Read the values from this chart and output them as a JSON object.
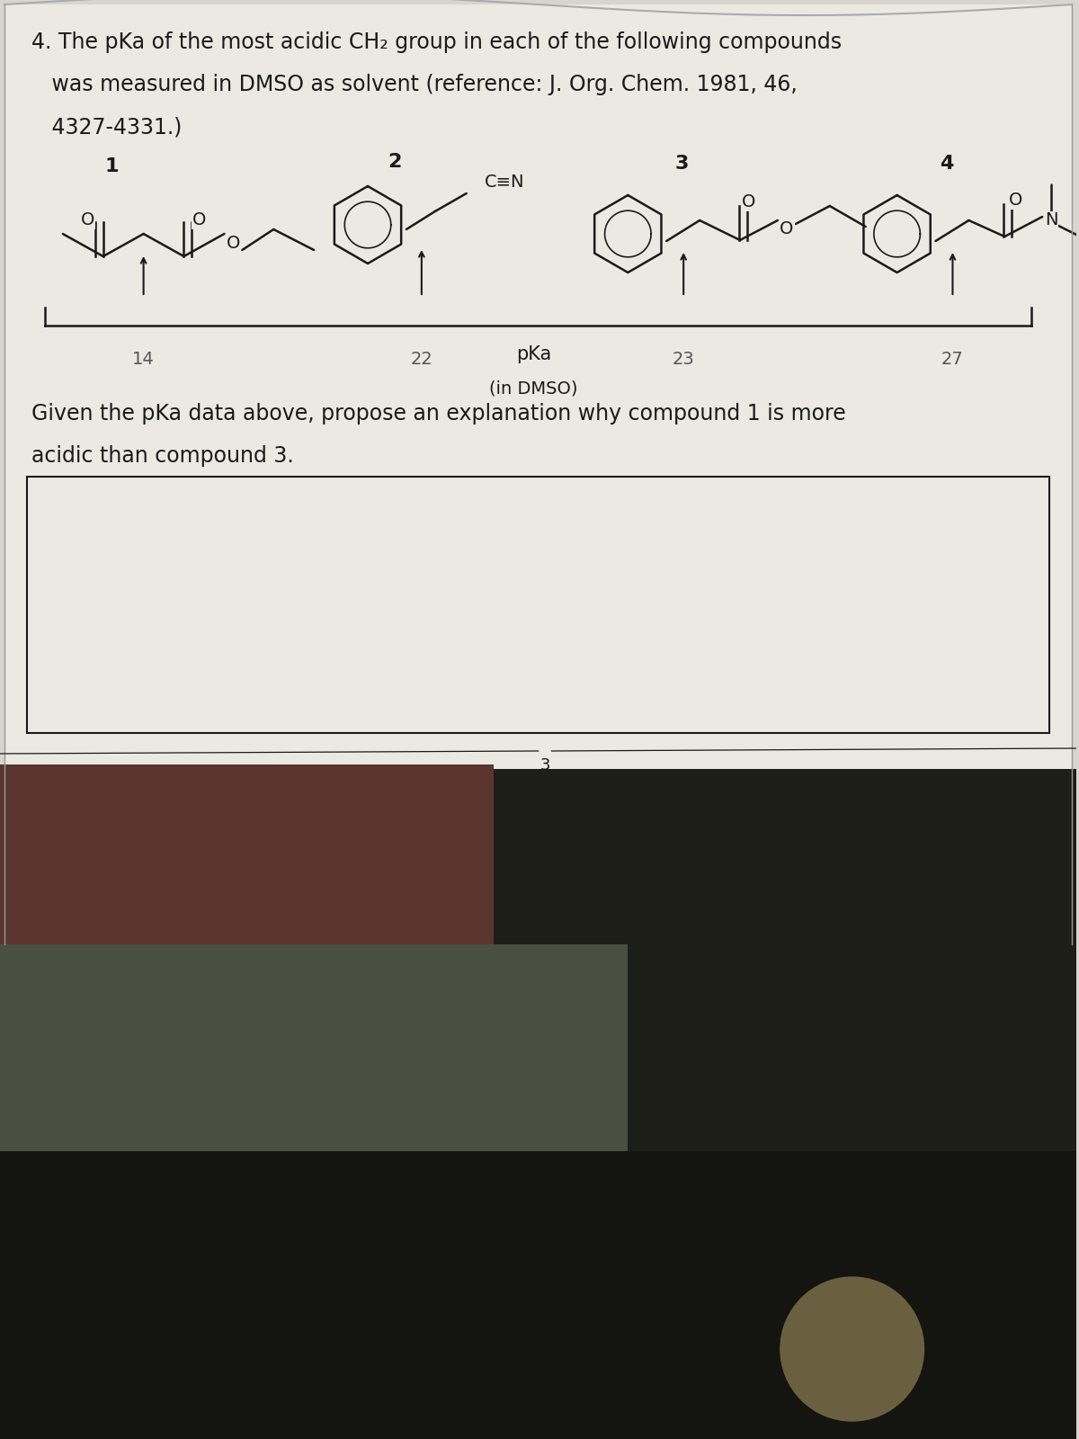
{
  "bg_color": "#d8d5cf",
  "paper_color": "#ece9e3",
  "text_color": "#1a1a1a",
  "line_color": "#1a1a1a",
  "title_line1": "4. The pKa of the most acidic CH₂ group in each of the following compounds",
  "title_line2": "   was measured in DMSO as solvent (reference: J. Org. Chem. 1981, 46,",
  "title_line3": "   4327-4331.)",
  "question_line1": "Given the pKa data above, propose an explanation why compound 1 is more",
  "question_line2": "acidic than compound 3.",
  "pka_14": "14",
  "pka_22": "22",
  "pka_23": "23",
  "pka_27": "27",
  "pka_label": "pKa",
  "pka_sublabel": "(in DMSO)",
  "comp1": "1",
  "comp2": "2",
  "comp3": "3",
  "comp4": "4",
  "page_num": "3",
  "title_fs": 17,
  "question_fs": 17,
  "chem_label_fs": 15,
  "pka_num_fs": 14,
  "bottom_dark": "#2a2420",
  "photo_mid": "#6a7060",
  "photo_dark": "#1a1c14"
}
